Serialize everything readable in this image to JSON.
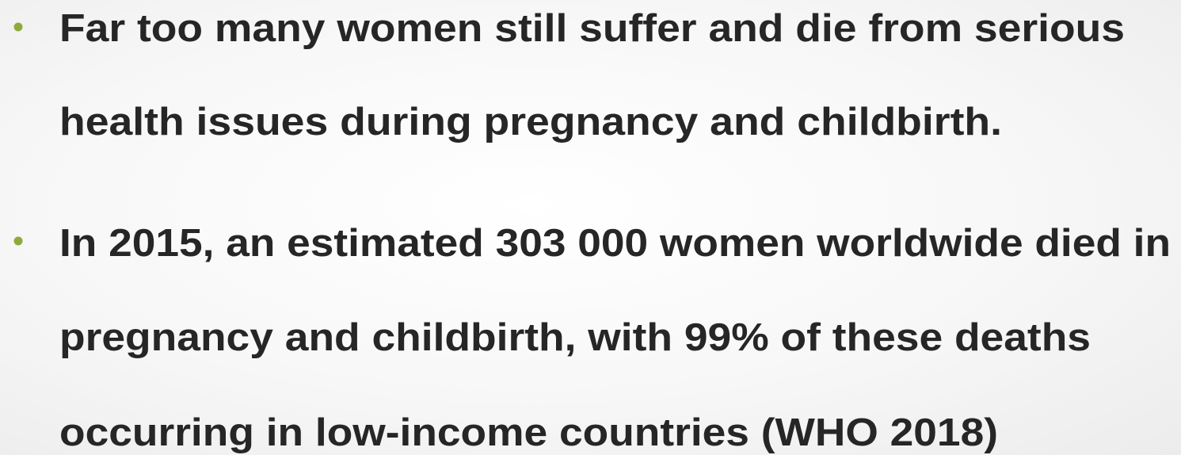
{
  "slide": {
    "bullets": [
      {
        "lines": [
          "Far too many women still suffer and die from serious",
          "health issues during pregnancy and childbirth."
        ]
      },
      {
        "lines": [
          "In 2015, an estimated 303 000 women worldwide died in",
          "pregnancy and childbirth, with 99% of these deaths",
          "occurring in low-income countries (WHO 2018)"
        ]
      }
    ]
  }
}
